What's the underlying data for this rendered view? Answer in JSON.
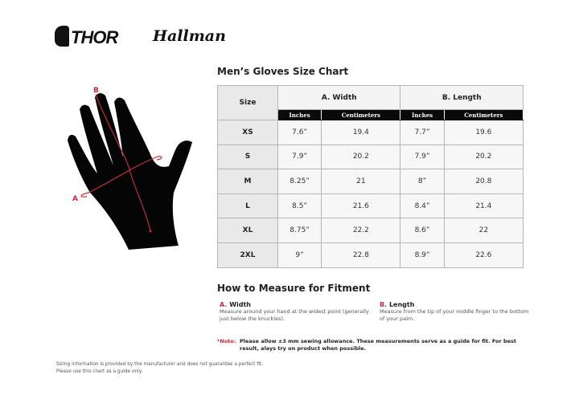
{
  "brand": {
    "logo1": "THOR",
    "logo2": "Hallman"
  },
  "title": "Men’s Gloves Size Chart",
  "diagram": {
    "label_a": "A",
    "label_b": "B",
    "accent": "#c0303a"
  },
  "table": {
    "size_header": "Size",
    "groups": [
      "A. Width",
      "B. Length"
    ],
    "subheaders": [
      "Inches",
      "Centimeters",
      "Inches",
      "Centimeters"
    ],
    "rows": [
      [
        "XS",
        "7.6”",
        "19.4",
        "7.7”",
        "19.6"
      ],
      [
        "S",
        "7.9”",
        "20.2",
        "7.9”",
        "20.2"
      ],
      [
        "M",
        "8.25”",
        "21",
        "8”",
        "20.8"
      ],
      [
        "L",
        "8.5”",
        "21.6",
        "8.4”",
        "21.4"
      ],
      [
        "XL",
        "8.75”",
        "22.2",
        "8.6”",
        "22"
      ],
      [
        "2XL",
        "9”",
        "22.8",
        "8.9”",
        "22.6"
      ]
    ]
  },
  "measure": {
    "heading": "How to Measure for Fitment",
    "a": {
      "letter": "A.",
      "title": "Width",
      "desc": "Measure around your hand at the widest point (generally just below the knuckles)."
    },
    "b": {
      "letter": "B.",
      "title": "Length",
      "desc": "Measure from the tip of your middle finger to the bottom of your palm."
    },
    "note_label": "*Note:",
    "note": "Please allow ±3 mm sewing allowance. These measurements serve as a guide for fit. For best result, alays try on product when possible."
  },
  "disclaimer": [
    "Sizing information is provided by the manufacturer and does not guarantee a perfect fit.",
    "Please use this chart as a guide only."
  ]
}
